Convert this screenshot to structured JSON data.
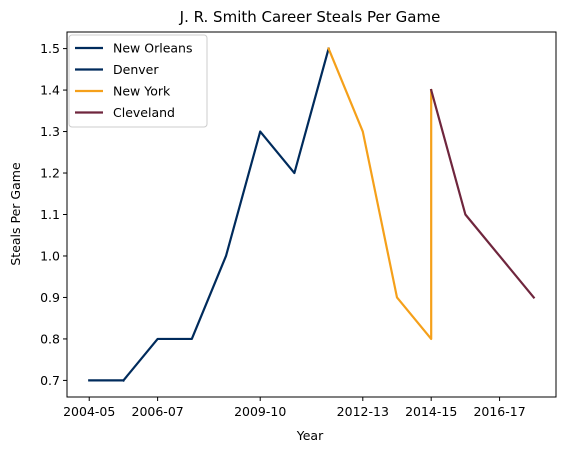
{
  "chart_data": {
    "type": "line",
    "title": "J. R. Smith Career Steals Per Game",
    "xlabel": "Year",
    "ylabel": "Steals Per Game",
    "x_tick_labels": [
      "2004-05",
      "2006-07",
      "2009-10",
      "2012-13",
      "2014-15",
      "2016-17"
    ],
    "y_tick_labels": [
      "0.7",
      "0.8",
      "0.9",
      "1.0",
      "1.1",
      "1.2",
      "1.3",
      "1.4",
      "1.5"
    ],
    "ylim": [
      0.66,
      1.54
    ],
    "grid": false,
    "legend_position": "top-left",
    "series": [
      {
        "name": "New Orleans",
        "color": "#002B5C",
        "points": [
          {
            "x": "2004-05",
            "y": 0.7
          },
          {
            "x": "2005-06",
            "y": 0.7
          }
        ]
      },
      {
        "name": "Denver",
        "color": "#002B5C",
        "points": [
          {
            "x": "2005-06",
            "y": 0.7
          },
          {
            "x": "2006-07",
            "y": 0.8
          },
          {
            "x": "2007-08",
            "y": 0.8
          },
          {
            "x": "2008-09",
            "y": 1.0
          },
          {
            "x": "2009-10",
            "y": 1.3
          },
          {
            "x": "2010-11",
            "y": 1.2
          },
          {
            "x": "2011-12",
            "y": 1.5
          }
        ]
      },
      {
        "name": "New York",
        "color": "#F5A01A",
        "points": [
          {
            "x": "2011-12",
            "y": 1.5
          },
          {
            "x": "2012-13",
            "y": 1.3
          },
          {
            "x": "2013-14",
            "y": 0.9
          },
          {
            "x": "2014-15",
            "y": 0.8
          },
          {
            "x": "2014-15",
            "y": 1.4
          }
        ]
      },
      {
        "name": "Cleveland",
        "color": "#6F263D",
        "points": [
          {
            "x": "2014-15",
            "y": 1.4
          },
          {
            "x": "2015-16",
            "y": 1.1
          },
          {
            "x": "2016-17",
            "y": 1.0
          },
          {
            "x": "2017-18",
            "y": 0.9
          }
        ]
      }
    ]
  }
}
